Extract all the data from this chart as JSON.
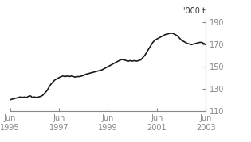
{
  "title": "",
  "ylabel": "'000 t",
  "xlabel": "",
  "ylim": [
    110,
    195
  ],
  "yticks": [
    110,
    130,
    150,
    170,
    190
  ],
  "line_color": "#1a1a1a",
  "background_color": "#ffffff",
  "axis_color": "#888888",
  "x_labels": [
    [
      "Jun\n1995",
      0
    ],
    [
      "Jun\n1997",
      24
    ],
    [
      "Jun\n1999",
      48
    ],
    [
      "Jun\n2001",
      72
    ],
    [
      "Jun\n2003",
      96
    ]
  ],
  "data": [
    [
      0,
      120
    ],
    [
      1,
      120.5
    ],
    [
      2,
      121
    ],
    [
      3,
      121.5
    ],
    [
      4,
      122
    ],
    [
      5,
      122.5
    ],
    [
      6,
      122
    ],
    [
      7,
      122.5
    ],
    [
      8,
      122
    ],
    [
      9,
      123
    ],
    [
      10,
      123.5
    ],
    [
      11,
      122
    ],
    [
      12,
      122.5
    ],
    [
      13,
      122
    ],
    [
      14,
      122.5
    ],
    [
      15,
      123
    ],
    [
      16,
      124
    ],
    [
      17,
      126
    ],
    [
      18,
      128
    ],
    [
      19,
      131
    ],
    [
      20,
      134
    ],
    [
      21,
      136
    ],
    [
      22,
      138
    ],
    [
      23,
      139
    ],
    [
      24,
      140
    ],
    [
      25,
      141
    ],
    [
      26,
      141.5
    ],
    [
      27,
      141
    ],
    [
      28,
      141.5
    ],
    [
      29,
      141
    ],
    [
      30,
      141.5
    ],
    [
      31,
      141
    ],
    [
      32,
      140.5
    ],
    [
      33,
      141
    ],
    [
      34,
      141
    ],
    [
      35,
      141.5
    ],
    [
      36,
      142
    ],
    [
      37,
      143
    ],
    [
      38,
      143.5
    ],
    [
      39,
      144
    ],
    [
      40,
      144.5
    ],
    [
      41,
      145
    ],
    [
      42,
      145.5
    ],
    [
      43,
      146
    ],
    [
      44,
      146.5
    ],
    [
      45,
      147
    ],
    [
      46,
      148
    ],
    [
      47,
      149
    ],
    [
      48,
      150
    ],
    [
      49,
      151
    ],
    [
      50,
      152
    ],
    [
      51,
      153
    ],
    [
      52,
      154
    ],
    [
      53,
      155
    ],
    [
      54,
      156
    ],
    [
      55,
      156.5
    ],
    [
      56,
      156
    ],
    [
      57,
      155.5
    ],
    [
      58,
      155
    ],
    [
      59,
      155.5
    ],
    [
      60,
      155
    ],
    [
      61,
      155.5
    ],
    [
      62,
      155
    ],
    [
      63,
      155.5
    ],
    [
      64,
      156
    ],
    [
      65,
      158
    ],
    [
      66,
      160
    ],
    [
      67,
      163
    ],
    [
      68,
      166
    ],
    [
      69,
      169
    ],
    [
      70,
      172
    ],
    [
      71,
      174
    ],
    [
      72,
      175
    ],
    [
      73,
      176
    ],
    [
      74,
      177
    ],
    [
      75,
      178
    ],
    [
      76,
      179
    ],
    [
      77,
      179.5
    ],
    [
      78,
      180
    ],
    [
      79,
      180.5
    ],
    [
      80,
      180
    ],
    [
      81,
      179
    ],
    [
      82,
      178
    ],
    [
      83,
      176
    ],
    [
      84,
      174
    ],
    [
      85,
      173
    ],
    [
      86,
      172
    ],
    [
      87,
      171
    ],
    [
      88,
      170.5
    ],
    [
      89,
      170
    ],
    [
      90,
      170.5
    ],
    [
      91,
      171
    ],
    [
      92,
      171.5
    ],
    [
      93,
      172
    ],
    [
      94,
      172
    ],
    [
      95,
      171
    ],
    [
      96,
      170
    ]
  ]
}
